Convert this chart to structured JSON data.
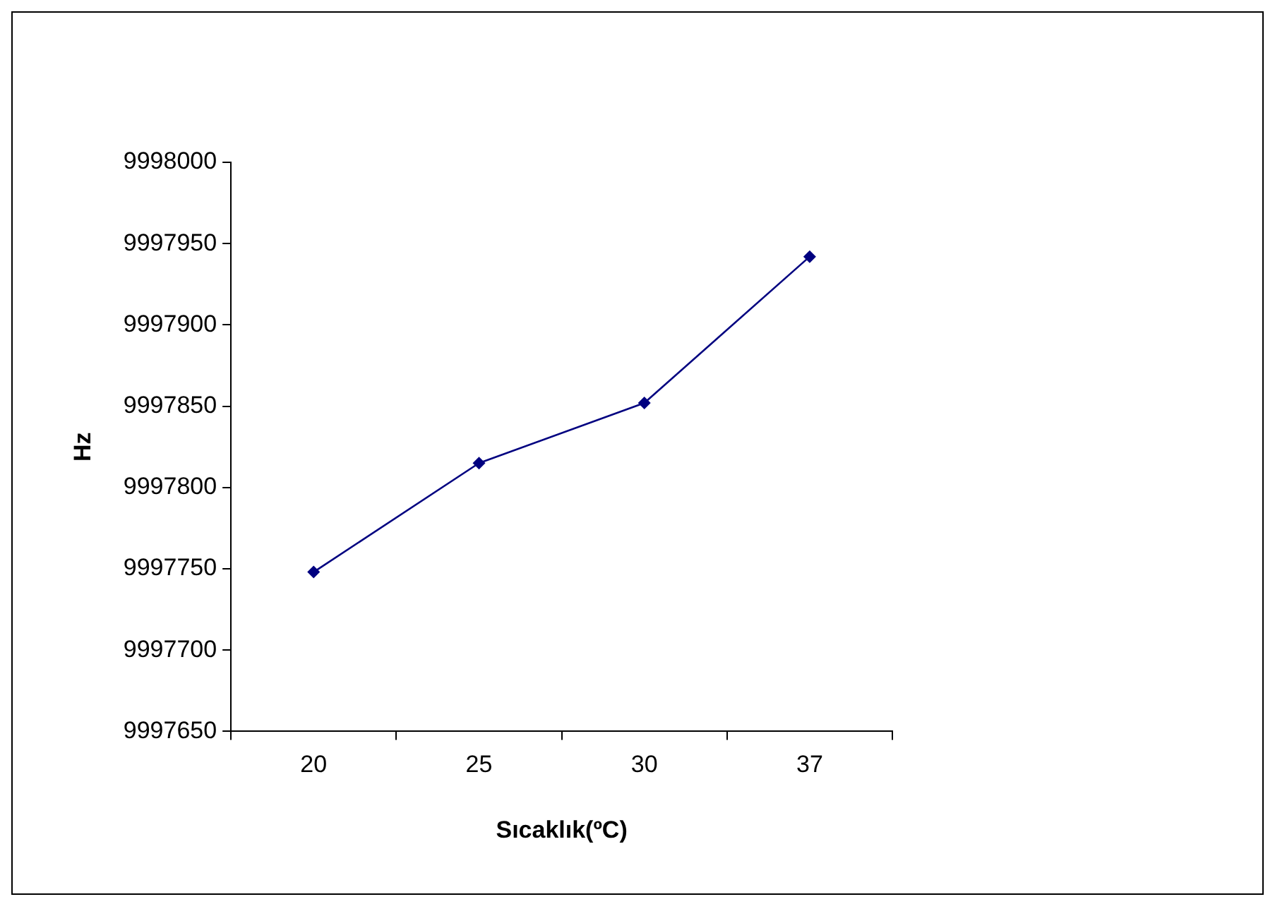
{
  "chart_data": {
    "type": "line",
    "xlabel": "Sıcaklık(ºC)",
    "ylabel": "Hz",
    "categories": [
      "20",
      "25",
      "30",
      "37"
    ],
    "series": [
      {
        "color": "#000080",
        "values": [
          9997748,
          9997815,
          9997852,
          9997942
        ]
      }
    ],
    "ylim": [
      9997650,
      9998000
    ],
    "yticks": [
      9997650,
      9997700,
      9997750,
      9997800,
      9997850,
      9997900,
      9997950,
      9998000
    ],
    "grid": false,
    "legend": false,
    "marker": "diamond",
    "line_style": "solid"
  }
}
